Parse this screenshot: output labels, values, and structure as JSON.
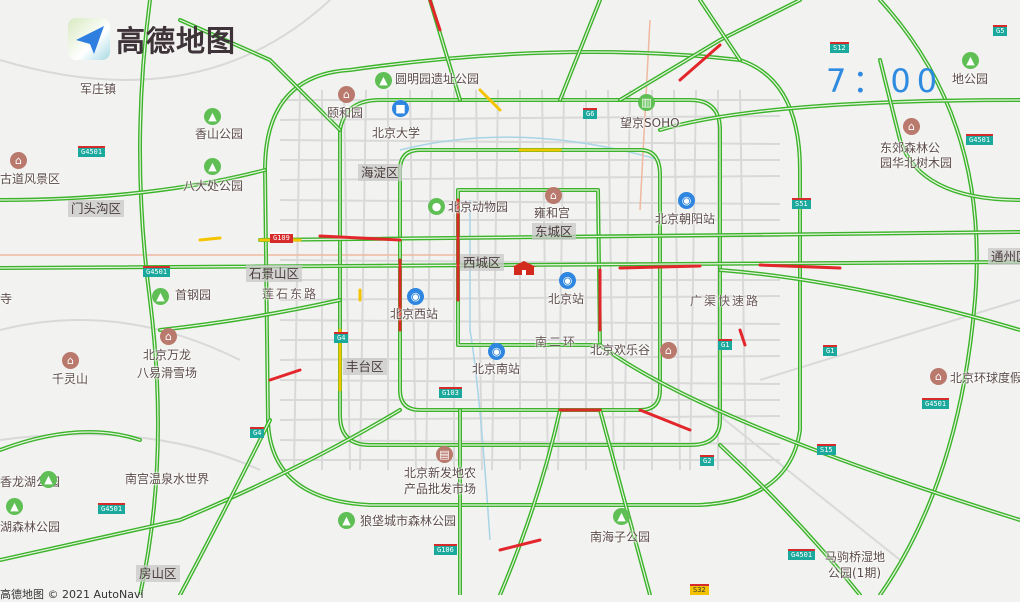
{
  "app": {
    "logo_text": "高德地图",
    "copyright": "高德地图 © 2021 AutoNavi"
  },
  "time_display": "7：00",
  "traffic_colors": {
    "smooth": "#3bb42a",
    "slow": "#f5c400",
    "congested": "#e3262b"
  },
  "districts": [
    "门头沟区",
    "石景山区",
    "海淀区",
    "东城区",
    "西城区",
    "丰台区",
    "通州区",
    "房山区"
  ],
  "pois": [
    {
      "name": "军庄镇",
      "icon": "none"
    },
    {
      "name": "香山公园",
      "icon": "park-icon"
    },
    {
      "name": "八大处公园",
      "icon": "park-icon"
    },
    {
      "name": "古道风景区",
      "icon": "scenic-icon"
    },
    {
      "name": "首钢园",
      "icon": "park-icon"
    },
    {
      "name": "北京万龙",
      "icon": "scenic-icon"
    },
    {
      "name": "八易滑雪场",
      "icon": "none"
    },
    {
      "name": "千灵山",
      "icon": "scenic-icon"
    },
    {
      "name": "香龙湖公园",
      "icon": "park-icon"
    },
    {
      "name": "湖森林公园",
      "icon": "park-icon"
    },
    {
      "name": "南宫温泉水世界",
      "icon": "none"
    },
    {
      "name": "颐和园",
      "icon": "scenic-icon"
    },
    {
      "name": "圆明园遗址公园",
      "icon": "park-icon"
    },
    {
      "name": "北京大学",
      "icon": "school-icon"
    },
    {
      "name": "北京动物园",
      "icon": "zoo-icon"
    },
    {
      "name": "雍和宫",
      "icon": "scenic-icon"
    },
    {
      "name": "北京站",
      "icon": "train-station-icon"
    },
    {
      "name": "北京西站",
      "icon": "train-station-icon"
    },
    {
      "name": "北京南站",
      "icon": "train-station-icon"
    },
    {
      "name": "北京欢乐谷",
      "icon": "scenic-icon"
    },
    {
      "name": "望京SOHO",
      "icon": "building-icon"
    },
    {
      "name": "北京朝阳站",
      "icon": "train-station-icon"
    },
    {
      "name": "东郊森林公",
      "icon": "scenic-icon"
    },
    {
      "name": "园华北树木园",
      "icon": "none"
    },
    {
      "name": "北京环球度假区",
      "icon": "scenic-icon"
    },
    {
      "name": "北京新发地农",
      "icon": "market-icon"
    },
    {
      "name": "产品批发市场",
      "icon": "none"
    },
    {
      "name": "狼垡城市森林公园",
      "icon": "park-icon"
    },
    {
      "name": "南海子公园",
      "icon": "park-icon"
    },
    {
      "name": "马驹桥湿地",
      "icon": "none"
    },
    {
      "name": "公园(1期)",
      "icon": "none"
    },
    {
      "name": "地公园",
      "icon": "park-icon"
    },
    {
      "name": "寺",
      "icon": "none"
    }
  ],
  "road_names": [
    "莲石东路",
    "南二环",
    "广渠快速路"
  ],
  "shields": [
    "G4501",
    "G4501",
    "G4501",
    "G4501",
    "G4501",
    "G4501",
    "G109",
    "G4",
    "G4",
    "G103",
    "G106",
    "G1",
    "G1",
    "S15",
    "G2",
    "S12",
    "G6",
    "S51",
    "G5",
    "S32"
  ]
}
